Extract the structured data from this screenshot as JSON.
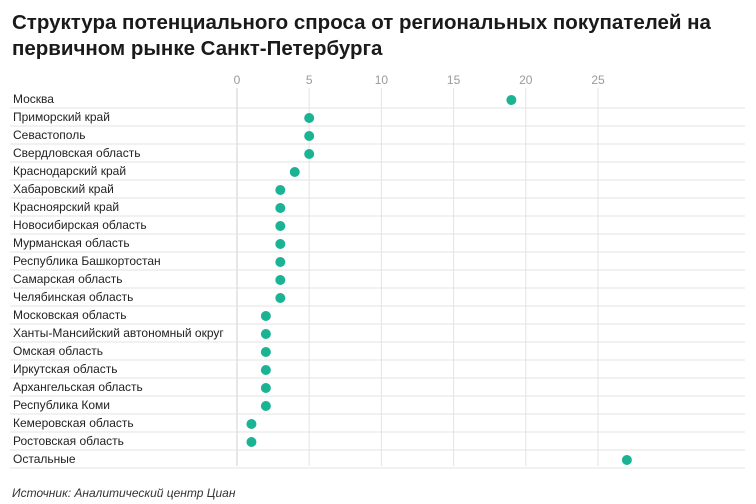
{
  "title": "Структура потенциального спроса от региональных покупателей на первичном рынке Санкт-Петербурга",
  "source": "Источник: Аналитический центр Циан",
  "colors": {
    "point": "#1ab394",
    "grid": "#e3e3e3",
    "axis": "#cfcfcf"
  },
  "chart_data": {
    "type": "scatter",
    "title": "Структура потенциального спроса от региональных покупателей на первичном рынке Санкт-Петербурга",
    "xlabel": "",
    "ylabel": "",
    "xlim": [
      0,
      28
    ],
    "xticks": [
      0,
      5,
      10,
      15,
      20,
      25
    ],
    "tick_labels": [
      "0",
      "5",
      "10",
      "15",
      "20",
      "25"
    ],
    "grid": true,
    "categories": [
      "Москва",
      "Приморский край",
      "Севастополь",
      "Свердловская область",
      "Краснодарский край",
      "Хабаровский край",
      "Красноярский край",
      "Новосибирская область",
      "Мурманская область",
      "Республика Башкортостан",
      "Самарская область",
      "Челябинская область",
      "Московская область",
      "Ханты-Мансийский автономный округ",
      "Омская область",
      "Иркутская область",
      "Архангельская область",
      "Республика Коми",
      "Кемеровская область",
      "Ростовская область",
      "Остальные"
    ],
    "values": [
      19,
      5,
      5,
      5,
      4,
      3,
      3,
      3,
      3,
      3,
      3,
      3,
      2,
      2,
      2,
      2,
      2,
      2,
      1,
      1,
      27
    ]
  }
}
